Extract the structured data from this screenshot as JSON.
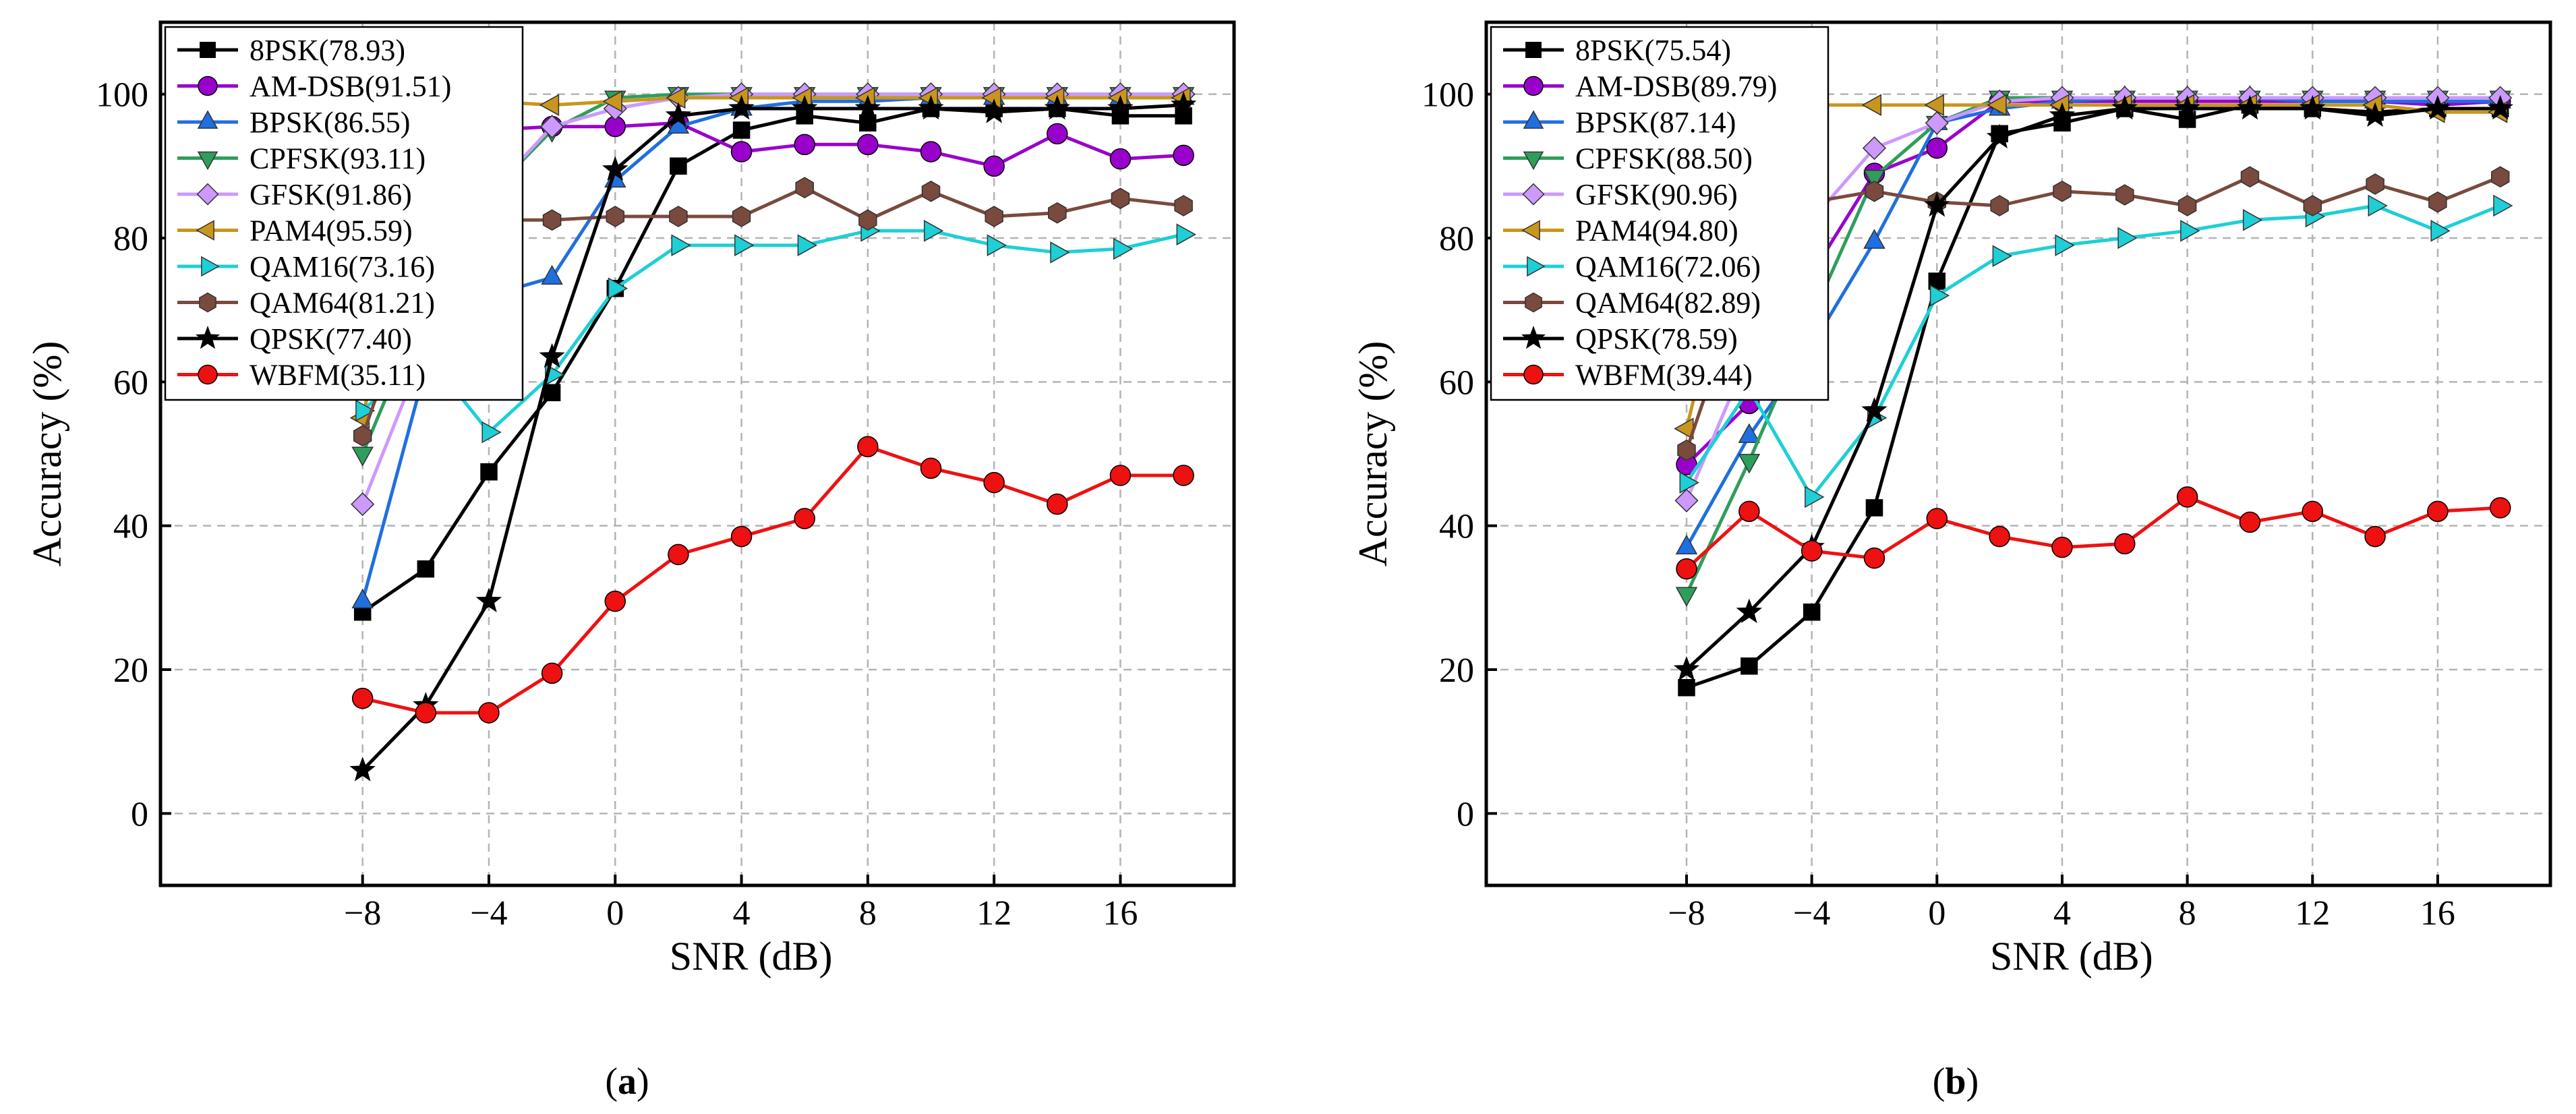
{
  "chart_data": [
    {
      "type": "line",
      "panel_label": "(a)",
      "xlabel": "SNR (dB)",
      "ylabel": "Accuracy (%)",
      "xlim": [
        -14.4,
        19.6
      ],
      "ylim": [
        -10,
        110
      ],
      "grid": true,
      "legend_position": "top-left",
      "x_ticks": [
        -8,
        -4,
        0,
        4,
        8,
        12,
        16
      ],
      "x_tick_labels": [
        "−8",
        "−4",
        "0",
        "4",
        "8",
        "12",
        "16"
      ],
      "y_ticks": [
        0,
        20,
        40,
        60,
        80,
        100
      ],
      "y_tick_labels": [
        "0",
        "20",
        "40",
        "60",
        "80",
        "100"
      ],
      "x": [
        -8,
        -6,
        -4,
        -2,
        0,
        2,
        4,
        6,
        8,
        10,
        12,
        14,
        16,
        18
      ],
      "series": [
        {
          "name": "8PSK(78.93)",
          "values": [
            28,
            34,
            47.5,
            58.5,
            73,
            90,
            95,
            97,
            96,
            98,
            98,
            98,
            97,
            97
          ]
        },
        {
          "name": "AM-DSB(91.51)",
          "values": [
            75.5,
            85,
            95,
            95.5,
            95.5,
            96,
            92,
            93,
            93,
            92,
            90,
            94.5,
            91,
            91.5
          ]
        },
        {
          "name": "BPSK(86.55)",
          "values": [
            29.5,
            62,
            72,
            74.5,
            88,
            95.5,
            98,
            99,
            99,
            99.5,
            99.5,
            99.5,
            99.5,
            99.5
          ]
        },
        {
          "name": "CPFSK(93.11)",
          "values": [
            50,
            71,
            86,
            95,
            99.5,
            100,
            100,
            100,
            100,
            100,
            100,
            100,
            100,
            100
          ]
        },
        {
          "name": "GFSK(91.86)",
          "values": [
            43,
            65,
            86,
            95.5,
            98,
            99.5,
            100,
            100,
            100,
            100,
            100,
            100,
            100,
            100
          ]
        },
        {
          "name": "PAM4(95.59)",
          "values": [
            55,
            95,
            99,
            98.5,
            99,
            99.5,
            99.5,
            99.5,
            99.5,
            99.5,
            99.5,
            99.5,
            99.5,
            99.5
          ]
        },
        {
          "name": "QAM16(73.16)",
          "values": [
            56,
            64,
            53,
            61,
            73,
            79,
            79,
            79,
            81,
            81,
            79,
            78,
            78.5,
            80.5
          ]
        },
        {
          "name": "QAM64(81.21)",
          "values": [
            52.5,
            77.5,
            82.5,
            82.5,
            83,
            83,
            83,
            87,
            82.5,
            86.5,
            83,
            83.5,
            85.5,
            84.5
          ]
        },
        {
          "name": "QPSK(77.40)",
          "values": [
            6,
            15,
            29.5,
            63.5,
            89.5,
            97,
            98,
            98,
            98,
            98,
            97.5,
            98,
            98,
            98.5
          ]
        },
        {
          "name": "WBFM(35.11)",
          "values": [
            16,
            14,
            14,
            19.5,
            29.5,
            36,
            38.5,
            41,
            51,
            48,
            46,
            43,
            47,
            47
          ]
        }
      ]
    },
    {
      "type": "line",
      "panel_label": "(b)",
      "xlabel": "SNR (dB)",
      "ylabel": "Accuracy (%)",
      "xlim": [
        -14.4,
        19.6
      ],
      "ylim": [
        -10,
        110
      ],
      "grid": true,
      "legend_position": "top-left",
      "x_ticks": [
        -8,
        -4,
        0,
        4,
        8,
        12,
        16
      ],
      "x_tick_labels": [
        "−8",
        "−4",
        "0",
        "4",
        "8",
        "12",
        "16"
      ],
      "y_ticks": [
        0,
        20,
        40,
        60,
        80,
        100
      ],
      "y_tick_labels": [
        "0",
        "20",
        "40",
        "60",
        "80",
        "100"
      ],
      "x": [
        -8,
        -6,
        -4,
        -2,
        0,
        2,
        4,
        6,
        8,
        10,
        12,
        14,
        16,
        18
      ],
      "series": [
        {
          "name": "8PSK(75.54)",
          "values": [
            17.5,
            20.5,
            28,
            42.5,
            74,
            94.5,
            96,
            98,
            96.5,
            98.5,
            98,
            97.5,
            98,
            98
          ]
        },
        {
          "name": "AM-DSB(89.79)",
          "values": [
            48.5,
            57,
            75,
            89,
            92.5,
            99,
            99,
            99,
            99,
            99,
            99,
            99,
            98.5,
            99
          ]
        },
        {
          "name": "BPSK(87.14)",
          "values": [
            37,
            52.5,
            65,
            79.5,
            96,
            98,
            99,
            99.5,
            99.5,
            99.5,
            99,
            99,
            99,
            99
          ]
        },
        {
          "name": "CPFSK(88.50)",
          "values": [
            30.5,
            49,
            69,
            88.5,
            96,
            99.5,
            99.5,
            99.5,
            99.5,
            99.5,
            99.5,
            99.5,
            99.5,
            99.5
          ]
        },
        {
          "name": "GFSK(90.96)",
          "values": [
            43.5,
            64,
            82.5,
            92.5,
            96,
            99,
            99.5,
            99.5,
            99.5,
            99.5,
            99.5,
            99.5,
            99.5,
            99.5
          ]
        },
        {
          "name": "PAM4(94.80)",
          "values": [
            53.5,
            89.5,
            98.5,
            98.5,
            98.5,
            98.5,
            98.5,
            98.5,
            98.5,
            98.5,
            98.5,
            98.5,
            97.5,
            97.5
          ]
        },
        {
          "name": "QAM16(72.06)",
          "values": [
            46,
            59,
            44,
            55,
            72,
            77.5,
            79,
            80,
            81,
            82.5,
            83,
            84.5,
            81,
            84.5
          ]
        },
        {
          "name": "QAM64(82.89)",
          "values": [
            50.5,
            76,
            85,
            86.5,
            85,
            84.5,
            86.5,
            86,
            84.5,
            88.5,
            84.5,
            87.5,
            85,
            88.5
          ]
        },
        {
          "name": "QPSK(78.59)",
          "values": [
            20,
            28,
            37,
            56,
            84.5,
            94,
            97,
            98,
            98,
            98,
            98,
            97,
            98,
            98
          ]
        },
        {
          "name": "WBFM(39.44)",
          "values": [
            34,
            42,
            36.5,
            35.5,
            41,
            38.5,
            37,
            37.5,
            44,
            40.5,
            42,
            38.5,
            42,
            42.5
          ]
        }
      ]
    }
  ],
  "styles": [
    {
      "color": "#000000",
      "marker": "square"
    },
    {
      "color": "#9900cc",
      "marker": "circle"
    },
    {
      "color": "#1f6fe0",
      "marker": "triangle-up"
    },
    {
      "color": "#2f9e5b",
      "marker": "triangle-down"
    },
    {
      "color": "#cc99ff",
      "marker": "diamond"
    },
    {
      "color": "#c8961e",
      "marker": "triangle-left"
    },
    {
      "color": "#1ecfd6",
      "marker": "triangle-right"
    },
    {
      "color": "#7a4a3e",
      "marker": "hexagon"
    },
    {
      "color": "#000000",
      "marker": "star"
    },
    {
      "color": "#ee1111",
      "marker": "circle"
    }
  ]
}
